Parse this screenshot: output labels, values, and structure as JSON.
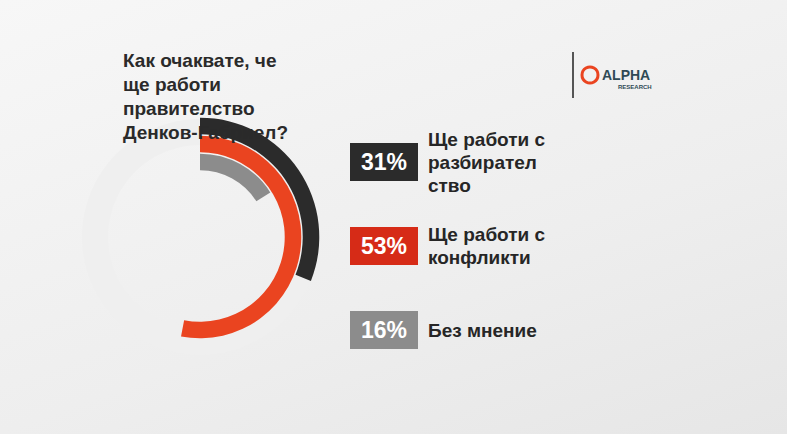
{
  "chart_data": {
    "type": "radial_bar",
    "title": "Как очаквате, че ще работи правителство Денков-Габриел?",
    "logo": {
      "name": "ALPHA",
      "sub": "RESEARCH"
    },
    "categories": [
      "Ще работи с разбирателство",
      "Ще работи с конфликти",
      "Без мнение"
    ],
    "values": [
      31,
      53,
      16
    ],
    "value_labels": [
      "31%",
      "53%",
      "16%"
    ],
    "colors": [
      "#2b2b2b",
      "#ea4420",
      "#8c8c8c"
    ],
    "data_labels": true,
    "tick_labels": false
  }
}
